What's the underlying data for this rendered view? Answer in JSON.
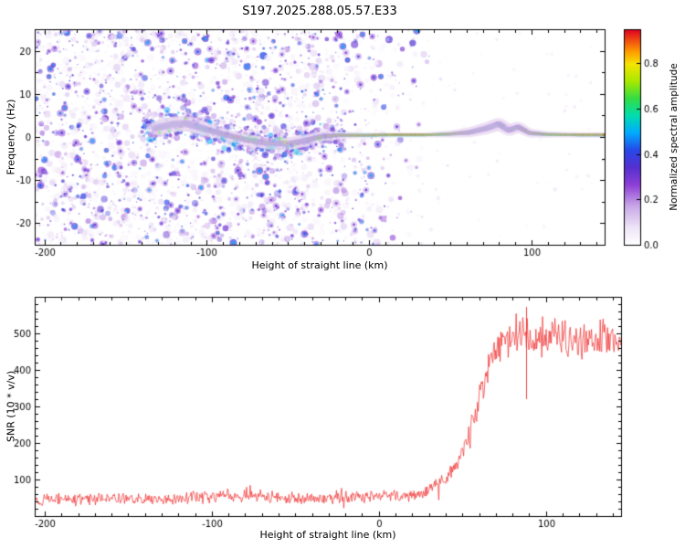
{
  "title": "S197.2025.288.05.57.E33",
  "chart_data": [
    {
      "type": "heatmap",
      "name": "doppler-spectrogram",
      "title": "S197.2025.288.05.57.E33",
      "xlabel": "Height of straight line (km)",
      "ylabel": "Frequency (Hz)",
      "xlim": [
        -206,
        145
      ],
      "ylim": [
        -25,
        25
      ],
      "xticks": [
        -200,
        -100,
        0,
        100
      ],
      "yticks": [
        -20,
        -10,
        0,
        10,
        20
      ],
      "x_minor_step": 10,
      "y_minor_step": 5,
      "grid": false,
      "colorbar": {
        "label": "Normalized spectral amplitude",
        "ticks": [
          0.0,
          0.2,
          0.4,
          0.6,
          0.8
        ],
        "vmin": 0.0,
        "vmax": 0.95
      },
      "colormap_stops": [
        [
          0.0,
          "#ffffff"
        ],
        [
          0.08,
          "#efe6f7"
        ],
        [
          0.18,
          "#c9a8e8"
        ],
        [
          0.28,
          "#8d3fd6"
        ],
        [
          0.36,
          "#5630cf"
        ],
        [
          0.44,
          "#2848e8"
        ],
        [
          0.52,
          "#00aaff"
        ],
        [
          0.6,
          "#00ddb0"
        ],
        [
          0.68,
          "#33dd44"
        ],
        [
          0.76,
          "#a8e800"
        ],
        [
          0.84,
          "#f5e400"
        ],
        [
          0.9,
          "#ff9900"
        ],
        [
          1.0,
          "#e00022"
        ]
      ],
      "noise_region": {
        "x_range": [
          -206,
          45
        ],
        "fade_start": -45,
        "blob_count": 3600,
        "value_range": [
          0.03,
          0.42
        ]
      },
      "signal_track": [
        {
          "x": -132,
          "f": 2.0,
          "s": 0.72,
          "w": 7.0
        },
        {
          "x": -120,
          "f": 3.0,
          "s": 0.8,
          "w": 7.5
        },
        {
          "x": -112,
          "f": 3.1,
          "s": 0.82,
          "w": 7.5
        },
        {
          "x": -104,
          "f": 2.2,
          "s": 0.78,
          "w": 7.0
        },
        {
          "x": -95,
          "f": 1.2,
          "s": 0.7,
          "w": 6.0
        },
        {
          "x": -85,
          "f": 0.2,
          "s": 0.72,
          "w": 5.5
        },
        {
          "x": -75,
          "f": -0.7,
          "s": 0.75,
          "w": 5.5
        },
        {
          "x": -63,
          "f": -1.4,
          "s": 0.85,
          "w": 6.0
        },
        {
          "x": -50,
          "f": -1.6,
          "s": 0.85,
          "w": 6.0
        },
        {
          "x": -40,
          "f": -0.9,
          "s": 0.8,
          "w": 6.0
        },
        {
          "x": -30,
          "f": 0.1,
          "s": 0.88,
          "w": 5.0
        },
        {
          "x": -20,
          "f": 0.4,
          "s": 0.92,
          "w": 4.0
        },
        {
          "x": -5,
          "f": 0.4,
          "s": 0.95,
          "w": 3.0
        },
        {
          "x": 15,
          "f": 0.5,
          "s": 0.95,
          "w": 2.6
        },
        {
          "x": 35,
          "f": 0.5,
          "s": 0.95,
          "w": 2.6
        },
        {
          "x": 50,
          "f": 0.7,
          "s": 0.93,
          "w": 3.5
        },
        {
          "x": 62,
          "f": 1.1,
          "s": 0.9,
          "w": 5.0
        },
        {
          "x": 72,
          "f": 2.0,
          "s": 0.88,
          "w": 6.0
        },
        {
          "x": 80,
          "f": 3.0,
          "s": 0.85,
          "w": 6.5
        },
        {
          "x": 86,
          "f": 1.6,
          "s": 0.88,
          "w": 6.0
        },
        {
          "x": 92,
          "f": 2.3,
          "s": 0.85,
          "w": 5.5
        },
        {
          "x": 99,
          "f": 0.9,
          "s": 0.9,
          "w": 4.5
        },
        {
          "x": 110,
          "f": 0.6,
          "s": 0.93,
          "w": 3.2
        },
        {
          "x": 128,
          "f": 0.5,
          "s": 0.94,
          "w": 2.8
        },
        {
          "x": 145,
          "f": 0.5,
          "s": 0.94,
          "w": 2.8
        }
      ]
    },
    {
      "type": "line",
      "name": "snr-profile",
      "xlabel": "Height of straight line (km)",
      "ylabel": "SNR (10 * v/v)",
      "xlim": [
        -206,
        145
      ],
      "ylim": [
        0,
        600
      ],
      "xticks": [
        -200,
        -100,
        0,
        100
      ],
      "yticks": [
        100,
        200,
        300,
        400,
        500
      ],
      "x_minor_step": 10,
      "y_minor_step": 20,
      "grid": false,
      "line_color": "#ef2929",
      "envelope": [
        [
          -206,
          45
        ],
        [
          -160,
          46
        ],
        [
          -120,
          48
        ],
        [
          -95,
          55
        ],
        [
          -70,
          54
        ],
        [
          -50,
          48
        ],
        [
          -30,
          50
        ],
        [
          -10,
          52
        ],
        [
          10,
          55
        ],
        [
          25,
          60
        ],
        [
          35,
          80
        ],
        [
          45,
          130
        ],
        [
          52,
          200
        ],
        [
          58,
          285
        ],
        [
          64,
          375
        ],
        [
          70,
          445
        ],
        [
          76,
          487
        ],
        [
          82,
          495
        ],
        [
          90,
          480
        ],
        [
          100,
          487
        ],
        [
          115,
          480
        ],
        [
          130,
          487
        ],
        [
          145,
          482
        ]
      ],
      "noise_base": 14,
      "noise_plateau": 42,
      "spikes": [
        {
          "x": 88,
          "low": 320,
          "high": 572
        }
      ]
    }
  ]
}
